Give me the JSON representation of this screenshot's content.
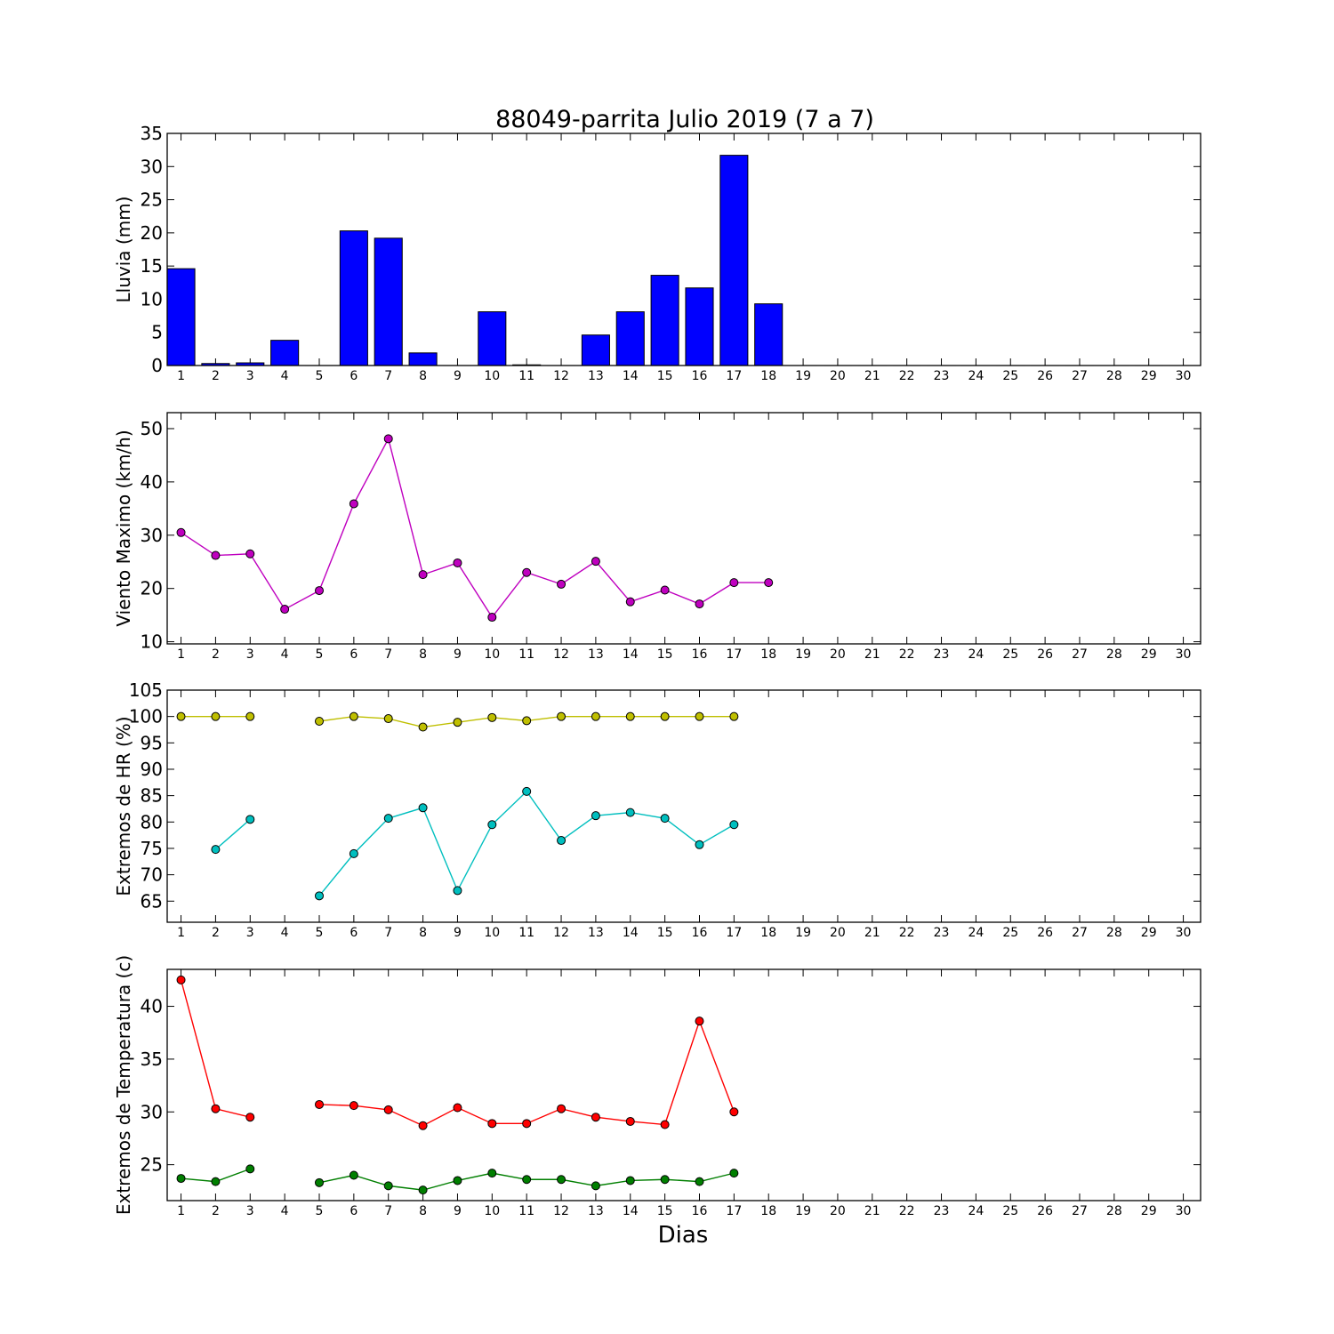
{
  "figure_title": "88049-parrita Julio 2019  (7 a 7)",
  "xlabel": "Dias",
  "days": [
    1,
    2,
    3,
    4,
    5,
    6,
    7,
    8,
    9,
    10,
    11,
    12,
    13,
    14,
    15,
    16,
    17,
    18,
    19,
    20,
    21,
    22,
    23,
    24,
    25,
    26,
    27,
    28,
    29,
    30
  ],
  "chart_data": [
    {
      "type": "bar",
      "ylabel": "Lluvia (mm)",
      "ylim": [
        0,
        35
      ],
      "yticks": [
        0,
        5,
        10,
        15,
        20,
        25,
        30,
        35
      ],
      "xlim": [
        0.6,
        30.5
      ],
      "categories": [
        1,
        2,
        3,
        4,
        5,
        6,
        7,
        8,
        9,
        10,
        11,
        12,
        13,
        14,
        15,
        16,
        17,
        18,
        19,
        20,
        21,
        22,
        23,
        24,
        25,
        26,
        27,
        28,
        29,
        30
      ],
      "series": [
        {
          "color": "#0000ff",
          "values": [
            14.6,
            0.3,
            0.4,
            3.8,
            0,
            20.3,
            19.2,
            1.9,
            0,
            8.1,
            0.1,
            0,
            4.6,
            8.1,
            13.6,
            11.7,
            31.7,
            9.3,
            0,
            0,
            0,
            0,
            0,
            0,
            0,
            0,
            0,
            0,
            0,
            0
          ]
        }
      ],
      "grid": false
    },
    {
      "type": "line",
      "ylabel": "Viento Maximo (km/h)",
      "ylim": [
        9.6,
        53
      ],
      "yticks": [
        10,
        20,
        30,
        40,
        50
      ],
      "xlim": [
        0.6,
        30.5
      ],
      "x": [
        1,
        2,
        3,
        4,
        5,
        6,
        7,
        8,
        9,
        10,
        11,
        12,
        13,
        14,
        15,
        16,
        17,
        18
      ],
      "series": [
        {
          "color": "#bf00bf",
          "values": [
            30.5,
            26.2,
            26.5,
            16.1,
            19.6,
            35.9,
            48.1,
            22.6,
            24.8,
            14.6,
            23,
            20.8,
            25.1,
            17.5,
            19.7,
            17.1,
            21.1,
            21.1
          ]
        }
      ],
      "grid": false
    },
    {
      "type": "line",
      "ylabel": "Extremos de HR (%)",
      "ylim": [
        61,
        105
      ],
      "yticks": [
        65,
        70,
        75,
        80,
        85,
        90,
        95,
        100,
        105
      ],
      "xlim": [
        0.6,
        30.5
      ],
      "x": [
        1,
        2,
        3,
        4,
        5,
        6,
        7,
        8,
        9,
        10,
        11,
        12,
        13,
        14,
        15,
        16,
        17
      ],
      "series": [
        {
          "color": "#bfbf00",
          "values": [
            100,
            100,
            100,
            null,
            99.1,
            100,
            99.6,
            98,
            98.9,
            99.8,
            99.2,
            100,
            100,
            100,
            100,
            100,
            100
          ]
        },
        {
          "color": "#00bfbf",
          "values": [
            null,
            74.8,
            80.5,
            null,
            66,
            74,
            80.7,
            82.7,
            67,
            79.5,
            85.8,
            76.5,
            81.2,
            81.8,
            80.7,
            75.7,
            79.5
          ]
        }
      ],
      "grid": false
    },
    {
      "type": "line",
      "ylabel": "Extremos de Temperatura (c)",
      "ylim": [
        21.6,
        43.5
      ],
      "yticks": [
        25,
        30,
        35,
        40
      ],
      "xlim": [
        0.6,
        30.5
      ],
      "x": [
        1,
        2,
        3,
        4,
        5,
        6,
        7,
        8,
        9,
        10,
        11,
        12,
        13,
        14,
        15,
        16,
        17
      ],
      "series": [
        {
          "color": "#ff0000",
          "values": [
            42.5,
            30.3,
            29.5,
            null,
            30.7,
            30.6,
            30.2,
            28.7,
            30.4,
            28.9,
            28.9,
            30.3,
            29.5,
            29.1,
            28.8,
            38.6,
            30
          ]
        },
        {
          "color": "#007f00",
          "values": [
            23.7,
            23.4,
            24.6,
            null,
            23.3,
            24,
            23,
            22.6,
            23.5,
            24.2,
            23.6,
            23.6,
            23,
            23.5,
            23.6,
            23.4,
            24.2
          ]
        }
      ],
      "grid": false
    }
  ]
}
